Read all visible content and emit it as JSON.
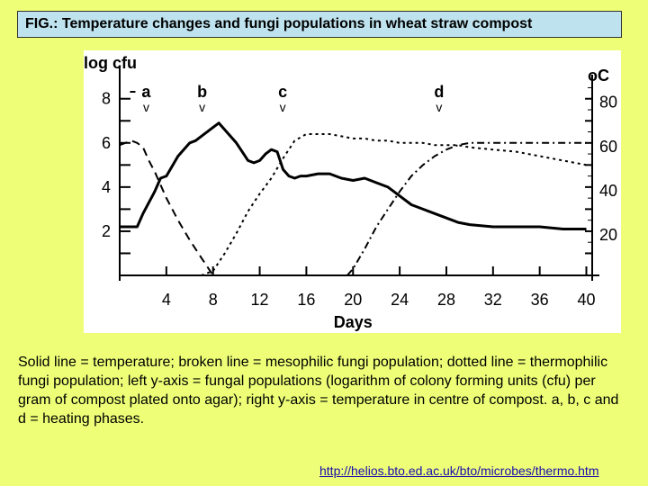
{
  "title": "FIG.: Temperature changes and fungi populations in wheat straw compost",
  "caption": "Solid line = temperature; broken line = mesophilic fungi population; dotted line = thermophilic fungi population; left y-axis = fungal populations (logarithm of colony forming units (cfu) per gram of compost plated onto agar); right y-axis = temperature in centre of compost. a, b, c and d = heating phases.",
  "source_url": "http://helios.bto.ed.ac.uk/bto/microbes/thermo.htm",
  "chart_data": {
    "type": "line",
    "xlabel": "Days",
    "ylabel_left": "log cfu",
    "ylabel_right": "oC",
    "x_ticks": [
      4,
      8,
      12,
      16,
      20,
      24,
      28,
      32,
      36,
      40
    ],
    "y_left_ticks": [
      2,
      4,
      6,
      8
    ],
    "y_right_ticks": [
      20,
      40,
      60,
      80
    ],
    "xlim": [
      0,
      40.5
    ],
    "ylim_left": [
      0,
      8.6
    ],
    "ylim_right": [
      0,
      86
    ],
    "phases": [
      {
        "label": "a",
        "marker": "v",
        "x": 1.5
      },
      {
        "label": "b",
        "marker": "v",
        "x": 6.3
      },
      {
        "label": "c",
        "marker": "v",
        "x": 13.2
      },
      {
        "label": "d",
        "marker": "v",
        "x": 26.6
      }
    ],
    "series": [
      {
        "style": "solid",
        "axis": "right",
        "x": [
          0,
          1.5,
          2,
          3,
          3.5,
          4,
          5,
          6,
          6.5,
          7,
          8,
          8.5,
          9,
          9.5,
          10,
          10.5,
          11,
          11.5,
          12,
          12.5,
          13,
          13.5,
          14,
          14.5,
          15,
          15.5,
          16,
          17,
          18,
          19,
          20,
          21,
          22,
          23,
          24,
          25,
          26,
          27,
          28,
          29,
          30,
          32,
          34,
          36,
          38,
          40
        ],
        "y": [
          22,
          22,
          28,
          38,
          44,
          45,
          54,
          60,
          61,
          63,
          67,
          69,
          66,
          63,
          60,
          56,
          52,
          51,
          52,
          55,
          57,
          56,
          48,
          45,
          44,
          45,
          45,
          46,
          46,
          44,
          43,
          44,
          42,
          40,
          36,
          32,
          30,
          28,
          26,
          24,
          23,
          22,
          22,
          22,
          21,
          21
        ]
      },
      {
        "style": "dashed",
        "axis": "left",
        "x": [
          0,
          1,
          1.5,
          2,
          2.5,
          3,
          3.5,
          4,
          5,
          6,
          7,
          7.5,
          8
        ],
        "y": [
          5.9,
          6.1,
          6.0,
          5.8,
          5.2,
          4.7,
          4.1,
          3.5,
          2.5,
          1.6,
          0.8,
          0.4,
          0.0
        ]
      },
      {
        "style": "dotted",
        "axis": "left",
        "x": [
          7,
          8,
          9,
          10,
          11,
          12,
          13,
          14,
          15,
          16,
          17,
          18,
          19,
          20,
          21,
          22,
          23,
          24,
          25,
          26,
          27,
          28,
          29,
          30,
          32,
          34,
          36,
          38,
          40
        ],
        "y": [
          0.0,
          0.2,
          1.0,
          1.9,
          2.9,
          3.7,
          4.4,
          5.3,
          6.1,
          6.4,
          6.4,
          6.4,
          6.3,
          6.2,
          6.2,
          6.1,
          6.1,
          6.0,
          6.0,
          6.0,
          5.9,
          5.9,
          5.9,
          5.8,
          5.7,
          5.6,
          5.4,
          5.2,
          5.0
        ]
      },
      {
        "style": "dotdash",
        "axis": "left",
        "x": [
          19.5,
          20,
          21,
          22,
          23,
          24,
          25,
          26,
          27,
          28,
          29,
          30,
          32,
          34,
          36,
          38,
          40
        ],
        "y": [
          0.0,
          0.3,
          1.2,
          2.2,
          3.0,
          3.8,
          4.5,
          5.0,
          5.4,
          5.7,
          5.9,
          6.0,
          6.0,
          6.0,
          6.0,
          6.0,
          6.0
        ]
      }
    ]
  }
}
